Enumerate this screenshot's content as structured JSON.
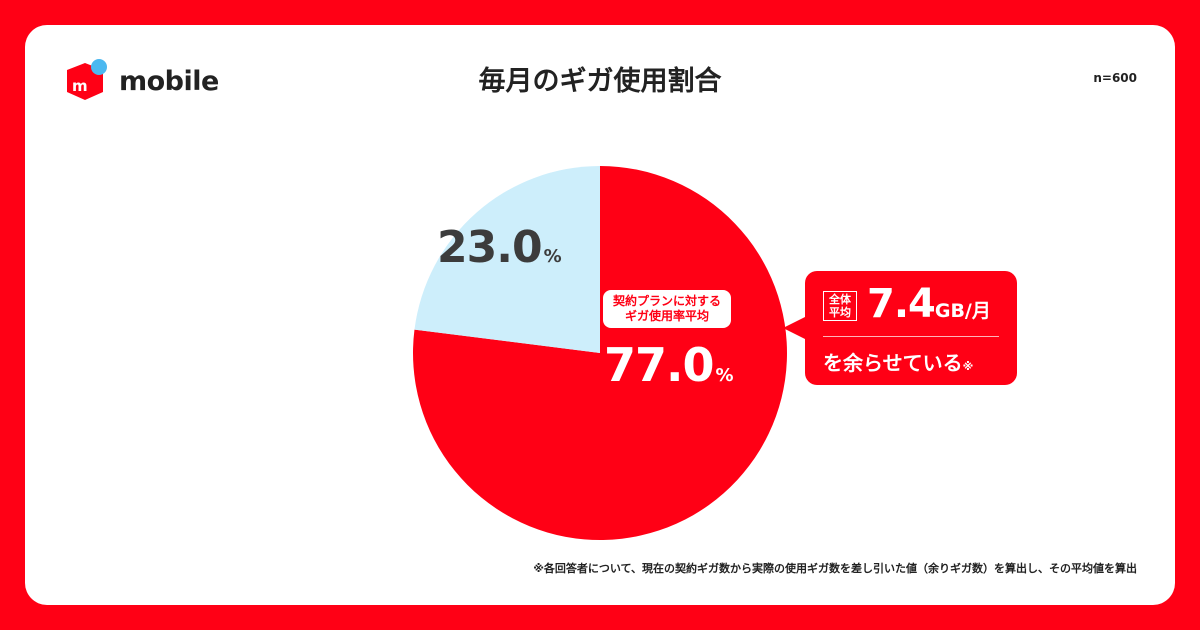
{
  "brand": {
    "name": "mobile",
    "color": "#ff0015",
    "dot_color": "#4bb8f0"
  },
  "header": {
    "title": "毎月のギガ使用割合",
    "sample": "n=600"
  },
  "chart_data": {
    "type": "pie",
    "title": "毎月のギガ使用割合",
    "slices": [
      {
        "label": "契約プランに対するギガ使用率平均",
        "value": 77.0,
        "color": "#ff0015"
      },
      {
        "label": "",
        "value": 23.0,
        "color": "#cdeefb"
      }
    ],
    "start": "12 o'clock, clockwise"
  },
  "labels": {
    "red_caption_1": "契約プランに対する",
    "red_caption_2": "ギガ使用率平均",
    "red_value": "77.0",
    "blue_value": "23.0",
    "percent": "%"
  },
  "callout": {
    "badge_1": "全体",
    "badge_2": "平均",
    "value": "7.4",
    "unit": "GB/月",
    "text": "を余らせている",
    "mark": "※"
  },
  "footnote": "※各回答者について、現在の契約ギガ数から実際の使用ギガ数を差し引いた値（余りギガ数）を算出し、その平均値を算出"
}
